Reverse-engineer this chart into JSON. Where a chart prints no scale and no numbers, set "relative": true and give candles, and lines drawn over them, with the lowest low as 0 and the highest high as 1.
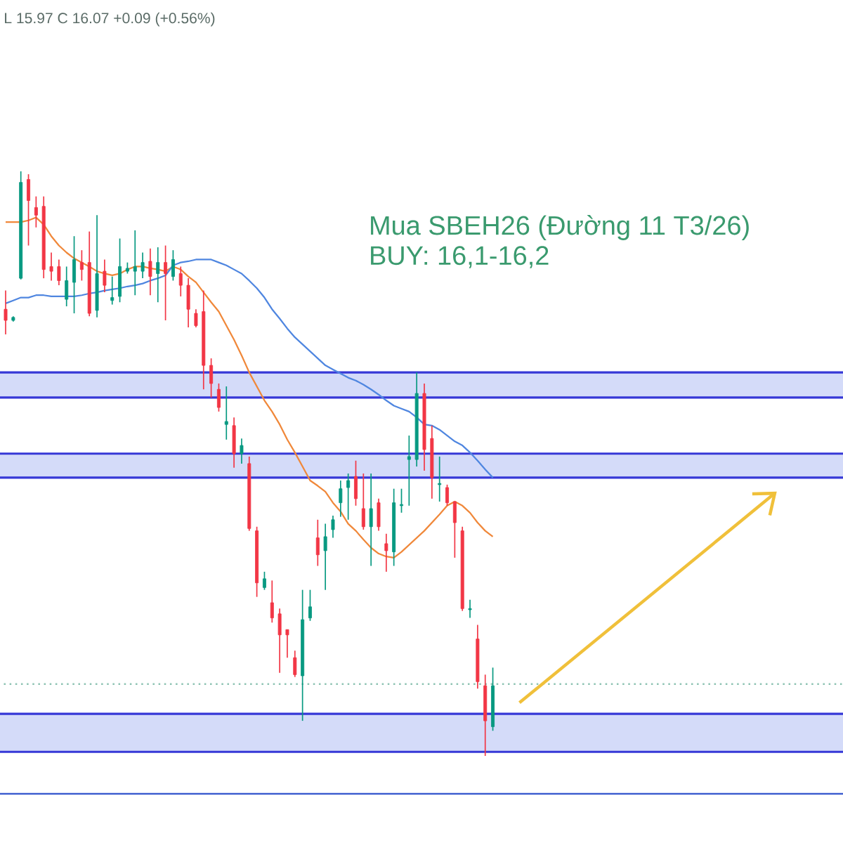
{
  "chart_data": {
    "type": "candlestick",
    "relative": true,
    "annotations": [
      "L 15.97  C 16.07  +0.09 (+0.56%)",
      "Mua SBEH26 (Đường 11 T3/26)",
      "BUY: 16,1-16,2"
    ],
    "categories": [
      null,
      null,
      null,
      null,
      null,
      null,
      null,
      null,
      null,
      null,
      null,
      null,
      null,
      null,
      null,
      null,
      null,
      null,
      null,
      null,
      null,
      null,
      null,
      null,
      null,
      null,
      null,
      null,
      null,
      null,
      null,
      null,
      null,
      null,
      null,
      null,
      null,
      null,
      null,
      null,
      null,
      null,
      null,
      null,
      null,
      null,
      null,
      null,
      null,
      null,
      null,
      null,
      null,
      null,
      null,
      null,
      null,
      null,
      null,
      null,
      null,
      null,
      null,
      null,
      null
    ],
    "ohlc": [
      [
        0.764,
        0.796,
        0.721,
        0.745
      ],
      [
        0.745,
        0.752,
        0.743,
        0.75
      ],
      [
        0.817,
        1.0,
        0.815,
        0.981
      ],
      [
        0.986,
        0.995,
        0.873,
        0.95
      ],
      [
        0.938,
        0.957,
        0.904,
        0.925
      ],
      [
        0.94,
        0.957,
        0.817,
        0.832
      ],
      [
        0.837,
        0.861,
        0.813,
        0.829
      ],
      [
        0.837,
        0.849,
        0.805,
        0.813
      ],
      [
        0.781,
        0.837,
        0.769,
        0.813
      ],
      [
        0.81,
        0.889,
        0.757,
        0.849
      ],
      [
        0.844,
        0.865,
        0.813,
        0.832
      ],
      [
        0.844,
        0.897,
        0.752,
        0.757
      ],
      [
        0.762,
        0.925,
        0.75,
        0.825
      ],
      [
        0.829,
        0.849,
        0.793,
        0.805
      ],
      [
        0.779,
        0.82,
        0.772,
        0.784
      ],
      [
        0.786,
        0.885,
        0.776,
        0.837
      ],
      [
        0.829,
        0.844,
        0.825,
        0.834
      ],
      [
        0.829,
        0.899,
        0.788,
        0.837
      ],
      [
        0.829,
        0.861,
        0.817,
        0.844
      ],
      [
        0.846,
        0.868,
        0.788,
        0.82
      ],
      [
        0.825,
        0.87,
        0.776,
        0.844
      ],
      [
        0.844,
        0.873,
        0.745,
        0.825
      ],
      [
        0.82,
        0.865,
        0.813,
        0.849
      ],
      [
        0.825,
        0.837,
        0.786,
        0.805
      ],
      [
        0.805,
        0.817,
        0.733,
        0.764
      ],
      [
        0.757,
        0.764,
        0.733,
        0.736
      ],
      [
        0.76,
        0.796,
        0.627,
        0.668
      ],
      [
        0.668,
        0.68,
        0.613,
        0.637
      ],
      [
        0.627,
        0.637,
        0.589,
        0.596
      ],
      [
        0.567,
        0.632,
        0.541,
        0.572
      ],
      [
        0.565,
        0.579,
        0.493,
        0.517
      ],
      [
        0.517,
        0.543,
        0.5,
        0.531
      ],
      [
        0.5,
        0.512,
        0.385,
        0.389
      ],
      [
        0.385,
        0.392,
        0.272,
        0.296
      ],
      [
        0.288,
        0.315,
        0.284,
        0.303
      ],
      [
        0.262,
        0.3,
        0.228,
        0.236
      ],
      [
        0.243,
        0.252,
        0.142,
        0.207
      ],
      [
        0.216,
        0.216,
        0.168,
        0.207
      ],
      [
        0.168,
        0.18,
        0.135,
        0.139
      ],
      [
        0.137,
        0.284,
        0.06,
        0.233
      ],
      [
        0.236,
        0.284,
        0.231,
        0.255
      ],
      [
        0.373,
        0.404,
        0.325,
        0.344
      ],
      [
        0.351,
        0.397,
        0.284,
        0.375
      ],
      [
        0.387,
        0.411,
        0.373,
        0.404
      ],
      [
        0.433,
        0.471,
        0.409,
        0.457
      ],
      [
        0.459,
        0.483,
        0.404,
        0.471
      ],
      [
        0.478,
        0.505,
        0.428,
        0.44
      ],
      [
        0.423,
        0.483,
        0.387,
        0.392
      ],
      [
        0.392,
        0.483,
        0.325,
        0.423
      ],
      [
        0.433,
        0.44,
        0.385,
        0.392
      ],
      [
        0.363,
        0.38,
        0.315,
        0.351
      ],
      [
        0.349,
        0.457,
        0.325,
        0.433
      ],
      [
        0.428,
        0.457,
        0.416,
        0.43
      ],
      [
        0.507,
        0.548,
        0.428,
        0.512
      ],
      [
        0.507,
        0.656,
        0.495,
        0.62
      ],
      [
        0.62,
        0.637,
        0.488,
        0.524
      ],
      [
        0.543,
        0.565,
        0.44,
        0.476
      ],
      [
        0.464,
        0.512,
        0.435,
        0.466
      ],
      [
        0.459,
        0.464,
        0.428,
        0.433
      ],
      [
        0.435,
        0.435,
        0.339,
        0.399
      ],
      [
        0.385,
        0.392,
        0.248,
        0.252
      ],
      [
        0.25,
        0.267,
        0.236,
        0.252
      ],
      [
        0.2,
        0.224,
        0.115,
        0.127
      ],
      [
        0.12,
        0.139,
        0.0,
        0.06
      ],
      [
        0.05,
        0.151,
        0.043,
        0.12
      ]
    ],
    "colors": [
      "#f23645",
      "#089981",
      "#089981",
      "#f23645",
      "#f23645",
      "#f23645",
      "#f23645",
      "#f23645",
      "#089981",
      "#089981",
      "#f23645",
      "#f23645",
      "#089981",
      "#f23645",
      "#089981",
      "#089981",
      "#089981",
      "#089981",
      "#089981",
      "#f23645",
      "#089981",
      "#f23645",
      "#089981",
      "#f23645",
      "#f23645",
      "#f23645",
      "#f23645",
      "#f23645",
      "#f23645",
      "#089981",
      "#f23645",
      "#089981",
      "#f23645",
      "#f23645",
      "#089981",
      "#f23645",
      "#f23645",
      "#f23645",
      "#f23645",
      "#089981",
      "#089981",
      "#f23645",
      "#089981",
      "#089981",
      "#089981",
      "#089981",
      "#f23645",
      "#f23645",
      "#089981",
      "#f23645",
      "#f23645",
      "#089981",
      "#089981",
      "#089981",
      "#089981",
      "#f23645",
      "#f23645",
      "#089981",
      "#f23645",
      "#f23645",
      "#f23645",
      "#089981",
      "#f23645",
      "#f23645",
      "#089981"
    ],
    "series": [
      {
        "type": "line",
        "color": "#f0883a",
        "values": [
          0.913,
          0.913,
          0.913,
          0.916,
          0.921,
          0.909,
          0.889,
          0.873,
          0.861,
          0.851,
          0.844,
          0.837,
          0.829,
          0.825,
          0.822,
          0.825,
          0.832,
          0.837,
          0.837,
          0.834,
          0.832,
          0.829,
          0.837,
          0.832,
          0.82,
          0.81,
          0.793,
          0.776,
          0.76,
          0.736,
          0.712,
          0.685,
          0.656,
          0.632,
          0.608,
          0.589,
          0.567,
          0.541,
          0.519,
          0.495,
          0.471,
          0.462,
          0.452,
          0.433,
          0.418,
          0.397,
          0.385,
          0.37,
          0.356,
          0.346,
          0.341,
          0.339,
          0.349,
          0.361,
          0.373,
          0.385,
          0.399,
          0.413,
          0.428,
          0.435,
          0.428,
          0.416,
          0.399,
          0.385,
          0.375
        ]
      },
      {
        "type": "line",
        "color": "#4f86e0",
        "values": [
          0.774,
          0.779,
          0.784,
          0.784,
          0.788,
          0.788,
          0.786,
          0.786,
          0.786,
          0.786,
          0.788,
          0.791,
          0.793,
          0.796,
          0.798,
          0.8,
          0.803,
          0.805,
          0.808,
          0.813,
          0.817,
          0.822,
          0.839,
          0.844,
          0.846,
          0.849,
          0.849,
          0.849,
          0.844,
          0.839,
          0.832,
          0.825,
          0.813,
          0.8,
          0.784,
          0.764,
          0.748,
          0.731,
          0.716,
          0.704,
          0.692,
          0.68,
          0.668,
          0.661,
          0.654,
          0.647,
          0.642,
          0.635,
          0.627,
          0.618,
          0.608,
          0.599,
          0.594,
          0.589,
          0.579,
          0.567,
          0.565,
          0.558,
          0.548,
          0.538,
          0.531,
          0.519,
          0.505,
          0.49,
          0.476
        ]
      }
    ],
    "bands": [
      {
        "axis": "y",
        "from": 0.613,
        "to": 0.656,
        "color": "#d4dbf9"
      },
      {
        "axis": "y",
        "from": 0.476,
        "to": 0.517,
        "color": "#d4dbf9"
      },
      {
        "axis": "y",
        "from": 0.007,
        "to": 0.072,
        "color": "#d4dbf9"
      }
    ],
    "ref_lines": [
      {
        "axis": "y",
        "value": 0.123,
        "color": "#8fc4b4",
        "line_style": "dotted"
      },
      {
        "axis": "y",
        "value": -0.065,
        "color": "#3c5ccf",
        "line_style": "solid"
      }
    ]
  }
}
